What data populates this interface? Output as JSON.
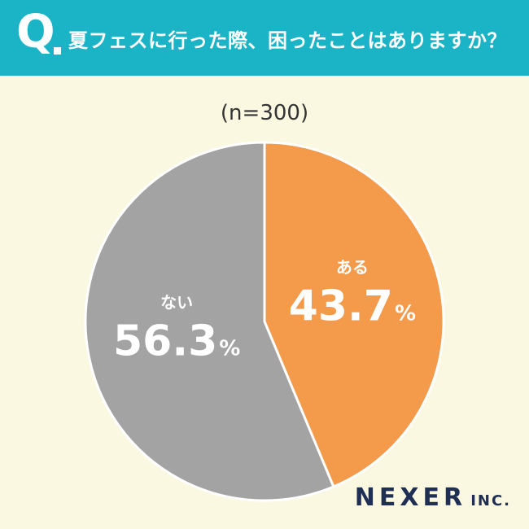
{
  "header": {
    "q_mark": "Q",
    "question": "夏フェスに行った際、困ったことはありますか？",
    "bg_color": "#1bb3c6"
  },
  "sample_size": "(n=300)",
  "chart_data": {
    "type": "pie",
    "slices": [
      {
        "label": "ある",
        "value": 43.7,
        "display": "43.7",
        "unit": "%",
        "color": "#f39a4b"
      },
      {
        "label": "ない",
        "value": 56.3,
        "display": "56.3",
        "unit": "%",
        "color": "#a3a3a3"
      }
    ],
    "start": "12 o'clock",
    "direction": "clockwise"
  },
  "brand": {
    "name": "NEXER",
    "suffix": "INC.",
    "color": "#1f2f54"
  }
}
